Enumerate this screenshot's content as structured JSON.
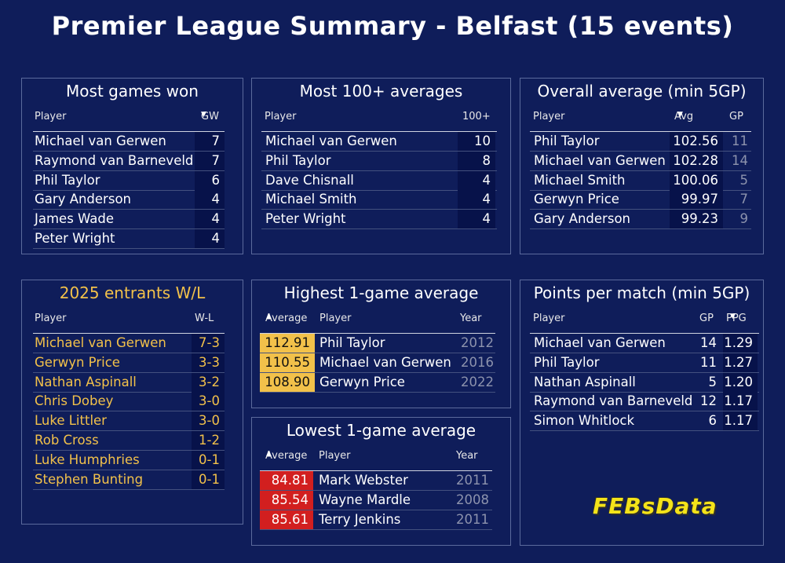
{
  "title": "Premier League Summary - Belfast (15 events)",
  "colors": {
    "background": "#0f1d5a",
    "gold": "#f2c14a",
    "red": "#d21f1f",
    "logo": "#f4e319"
  },
  "most_games_won": {
    "title": "Most games won",
    "headers": [
      "Player",
      "GW"
    ],
    "rows": [
      {
        "player": "Michael van Gerwen",
        "gw": "7"
      },
      {
        "player": "Raymond van Barneveld",
        "gw": "7"
      },
      {
        "player": "Phil Taylor",
        "gw": "6"
      },
      {
        "player": "Gary Anderson",
        "gw": "4"
      },
      {
        "player": "James Wade",
        "gw": "4"
      },
      {
        "player": "Peter Wright",
        "gw": "4"
      }
    ]
  },
  "most_100_averages": {
    "title": "Most 100+ averages",
    "headers": [
      "Player",
      "100+"
    ],
    "rows": [
      {
        "player": "Michael van Gerwen",
        "count": "10"
      },
      {
        "player": "Phil Taylor",
        "count": "8"
      },
      {
        "player": "Dave Chisnall",
        "count": "4"
      },
      {
        "player": "Michael Smith",
        "count": "4"
      },
      {
        "player": "Peter Wright",
        "count": "4"
      }
    ]
  },
  "overall_average": {
    "title": "Overall average (min 5GP)",
    "headers": [
      "Player",
      "Avg",
      "GP"
    ],
    "rows": [
      {
        "player": "Phil Taylor",
        "avg": "102.56",
        "gp": "11"
      },
      {
        "player": "Michael van Gerwen",
        "avg": "102.28",
        "gp": "14"
      },
      {
        "player": "Michael Smith",
        "avg": "100.06",
        "gp": "5"
      },
      {
        "player": "Gerwyn Price",
        "avg": "99.97",
        "gp": "7"
      },
      {
        "player": "Gary Anderson",
        "avg": "99.23",
        "gp": "9"
      }
    ]
  },
  "entrants_2025": {
    "title": "2025 entrants W/L",
    "headers": [
      "Player",
      "W-L"
    ],
    "rows": [
      {
        "player": "Michael van Gerwen",
        "wl": "7-3"
      },
      {
        "player": "Gerwyn Price",
        "wl": "3-3"
      },
      {
        "player": "Nathan Aspinall",
        "wl": "3-2"
      },
      {
        "player": "Chris Dobey",
        "wl": "3-0"
      },
      {
        "player": "Luke Littler",
        "wl": "3-0"
      },
      {
        "player": "Rob Cross",
        "wl": "1-2"
      },
      {
        "player": "Luke Humphries",
        "wl": "0-1"
      },
      {
        "player": "Stephen Bunting",
        "wl": "0-1"
      }
    ]
  },
  "highest_1game": {
    "title": "Highest 1-game average",
    "headers": [
      "Average",
      "Player",
      "Year"
    ],
    "rows": [
      {
        "average": "112.91",
        "player": "Phil Taylor",
        "year": "2012"
      },
      {
        "average": "110.55",
        "player": "Michael van Gerwen",
        "year": "2016"
      },
      {
        "average": "108.90",
        "player": "Gerwyn Price",
        "year": "2022"
      }
    ]
  },
  "lowest_1game": {
    "title": "Lowest 1-game average",
    "headers": [
      "Average",
      "Player",
      "Year"
    ],
    "rows": [
      {
        "average": "84.81",
        "player": "Mark Webster",
        "year": "2011"
      },
      {
        "average": "85.54",
        "player": "Wayne Mardle",
        "year": "2008"
      },
      {
        "average": "85.61",
        "player": "Terry Jenkins",
        "year": "2011"
      }
    ]
  },
  "points_per_match": {
    "title": "Points per match (min 5GP)",
    "headers": [
      "Player",
      "GP",
      "PPG"
    ],
    "rows": [
      {
        "player": "Michael van Gerwen",
        "gp": "14",
        "ppg": "1.29"
      },
      {
        "player": "Phil Taylor",
        "gp": "11",
        "ppg": "1.27"
      },
      {
        "player": "Nathan Aspinall",
        "gp": "5",
        "ppg": "1.20"
      },
      {
        "player": "Raymond van Barneveld",
        "gp": "12",
        "ppg": "1.17"
      },
      {
        "player": "Simon Whitlock",
        "gp": "6",
        "ppg": "1.17"
      }
    ]
  },
  "logo": "FEBsData",
  "sort_arrow": "▼",
  "sort_arrow_up": "▲"
}
